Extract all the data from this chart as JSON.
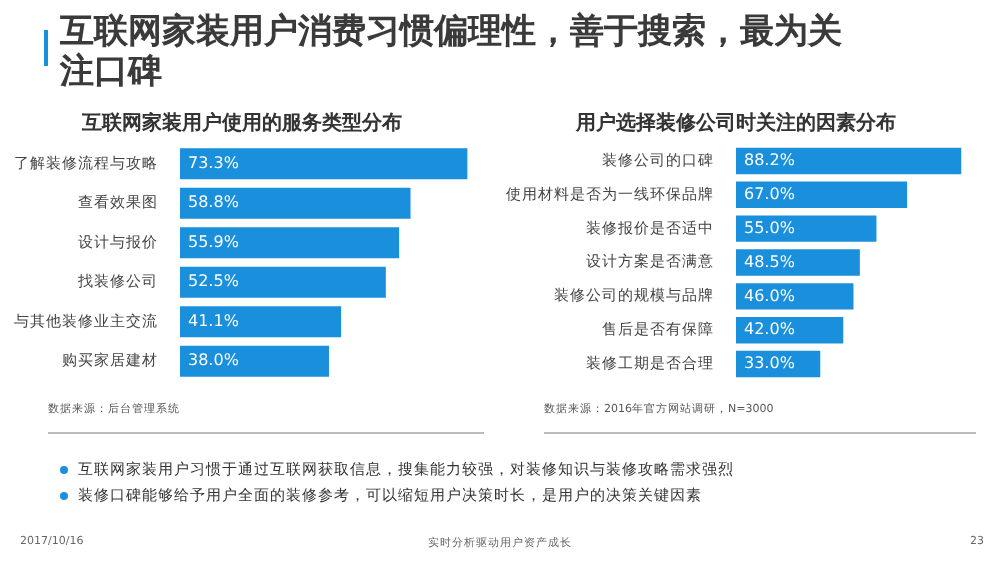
{
  "chart_data": [
    {
      "type": "other",
      "title": "互联网家装用户消费习惯偏理性，善于搜索，最为关注口碑"
    },
    {
      "type": "bar",
      "orientation": "horizontal",
      "title": "互联网家装用户使用的服务类型分布",
      "categories": [
        "了解装修流程与攻略",
        "查看效果图",
        "设计与报价",
        "找装修公司",
        "与其他装修业主交流",
        "购买家居建材"
      ],
      "values": [
        73.3,
        58.8,
        55.9,
        52.5,
        41.1,
        38.0
      ],
      "value_labels": [
        "73.3%",
        "58.8%",
        "55.9%",
        "52.5%",
        "41.1%",
        "38.0%"
      ],
      "color": "#1a8fdc",
      "tick_labels": "y",
      "annotations": [
        "数据来源：后台管理系统"
      ]
    },
    {
      "type": "bar",
      "orientation": "horizontal",
      "title": "用户选择装修公司时关注的因素分布",
      "categories": [
        "装修公司的口碑",
        "使用材料是否为一线环保品牌",
        "装修报价是否适中",
        "设计方案是否满意",
        "装修公司的规模与品牌",
        "售后是否有保障",
        "装修工期是否合理"
      ],
      "values": [
        88.2,
        67.0,
        55.0,
        48.5,
        46.0,
        42.0,
        33.0
      ],
      "value_labels": [
        "88.2%",
        "67.0%",
        "55.0%",
        "48.5%",
        "46.0%",
        "42.0%",
        "33.0%"
      ],
      "color": "#1a8fdc",
      "tick_labels": "y",
      "annotations": [
        "数据来源：2016年官方网站调研，N=3000"
      ]
    },
    {
      "type": "other",
      "annotations": [
        "互联网家装用户习惯于通过互联网获取信息，搜集能力较强，对装修知识与装修攻略需求强烈",
        "装修口碑能够给予用户全面的装修参考，可以缩短用户决策时长，是用户的决策关键因素",
        "2017/10/16",
        "实时分析驱动用户资产成长",
        "23"
      ]
    }
  ]
}
